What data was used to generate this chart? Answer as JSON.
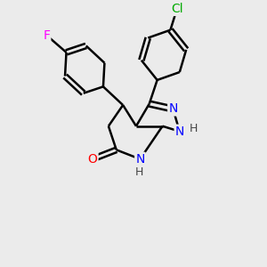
{
  "background_color": "#ebebeb",
  "bond_color": "#000000",
  "bond_width": 1.8,
  "atom_colors": {
    "N": "#0000ff",
    "O": "#ff0000",
    "F": "#ff00ff",
    "Cl": "#00aa00",
    "C": "#000000",
    "H": "#444444"
  }
}
